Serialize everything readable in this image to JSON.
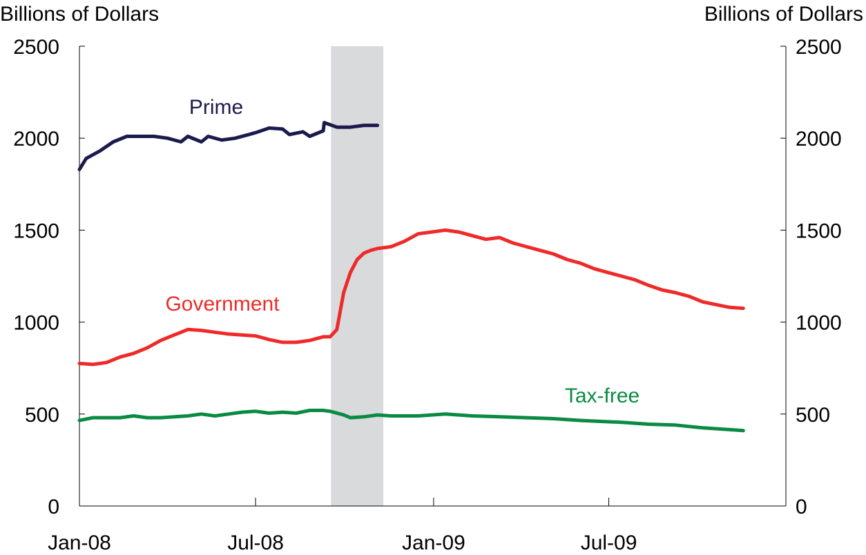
{
  "chart_data": {
    "type": "line",
    "ylabel_left": "Billions of Dollars",
    "ylabel_right": "Billions of Dollars",
    "ylim": [
      0,
      2500
    ],
    "yticks": [
      0,
      500,
      1000,
      1500,
      2000,
      2500
    ],
    "xlim": [
      "2008-01-01",
      "2009-12-31"
    ],
    "xticks": [
      {
        "date": "2008-01-01",
        "label": "Jan-08"
      },
      {
        "date": "2008-07-01",
        "label": "Jul-08"
      },
      {
        "date": "2009-01-01",
        "label": "Jan-09"
      },
      {
        "date": "2009-07-01",
        "label": "Jul-09"
      }
    ],
    "shaded_region": {
      "start": "2008-09-17",
      "end": "2008-11-10",
      "color": "#d9dadc"
    },
    "series": [
      {
        "name": "Prime",
        "color": "#1b1a4d",
        "points": [
          [
            "2008-01-01",
            1830
          ],
          [
            "2008-01-08",
            1890
          ],
          [
            "2008-01-22",
            1930
          ],
          [
            "2008-02-05",
            1980
          ],
          [
            "2008-02-19",
            2010
          ],
          [
            "2008-03-04",
            2010
          ],
          [
            "2008-03-18",
            2010
          ],
          [
            "2008-04-01",
            2000
          ],
          [
            "2008-04-15",
            1980
          ],
          [
            "2008-04-22",
            2010
          ],
          [
            "2008-05-06",
            1980
          ],
          [
            "2008-05-13",
            2010
          ],
          [
            "2008-05-27",
            1990
          ],
          [
            "2008-06-10",
            2000
          ],
          [
            "2008-06-24",
            2020
          ],
          [
            "2008-07-01",
            2030
          ],
          [
            "2008-07-15",
            2055
          ],
          [
            "2008-07-29",
            2050
          ],
          [
            "2008-08-05",
            2020
          ],
          [
            "2008-08-19",
            2035
          ],
          [
            "2008-08-26",
            2010
          ],
          [
            "2008-09-09",
            2040
          ],
          [
            "2008-09-23",
            2060
          ],
          [
            "2008-10-07",
            2060
          ],
          [
            "2008-10-21",
            2070
          ],
          [
            "2008-11-04",
            2070
          ],
          [
            "2008-09-10",
            2085
          ]
        ],
        "label_position": "above"
      },
      {
        "name": "Government",
        "color": "#ee2a2a",
        "points": [
          [
            "2008-01-01",
            775
          ],
          [
            "2008-01-15",
            770
          ],
          [
            "2008-01-29",
            780
          ],
          [
            "2008-02-12",
            810
          ],
          [
            "2008-02-26",
            830
          ],
          [
            "2008-03-11",
            860
          ],
          [
            "2008-03-25",
            900
          ],
          [
            "2008-04-08",
            930
          ],
          [
            "2008-04-22",
            960
          ],
          [
            "2008-05-06",
            955
          ],
          [
            "2008-05-20",
            945
          ],
          [
            "2008-06-03",
            935
          ],
          [
            "2008-06-17",
            930
          ],
          [
            "2008-07-01",
            925
          ],
          [
            "2008-07-15",
            905
          ],
          [
            "2008-07-29",
            890
          ],
          [
            "2008-08-12",
            890
          ],
          [
            "2008-08-26",
            900
          ],
          [
            "2008-09-09",
            920
          ],
          [
            "2008-09-16",
            920
          ],
          [
            "2008-09-23",
            960
          ],
          [
            "2008-09-30",
            1160
          ],
          [
            "2008-10-07",
            1270
          ],
          [
            "2008-10-14",
            1340
          ],
          [
            "2008-10-21",
            1375
          ],
          [
            "2008-10-28",
            1390
          ],
          [
            "2008-11-04",
            1400
          ],
          [
            "2008-11-18",
            1410
          ],
          [
            "2008-12-02",
            1440
          ],
          [
            "2008-12-16",
            1480
          ],
          [
            "2008-12-30",
            1490
          ],
          [
            "2009-01-13",
            1500
          ],
          [
            "2009-01-27",
            1490
          ],
          [
            "2009-02-10",
            1470
          ],
          [
            "2009-02-24",
            1450
          ],
          [
            "2009-03-10",
            1460
          ],
          [
            "2009-03-24",
            1430
          ],
          [
            "2009-04-07",
            1410
          ],
          [
            "2009-04-21",
            1390
          ],
          [
            "2009-05-05",
            1370
          ],
          [
            "2009-05-19",
            1340
          ],
          [
            "2009-06-02",
            1320
          ],
          [
            "2009-06-16",
            1290
          ],
          [
            "2009-06-30",
            1270
          ],
          [
            "2009-07-14",
            1250
          ],
          [
            "2009-07-28",
            1230
          ],
          [
            "2009-08-11",
            1200
          ],
          [
            "2009-08-25",
            1175
          ],
          [
            "2009-09-08",
            1160
          ],
          [
            "2009-09-22",
            1140
          ],
          [
            "2009-10-06",
            1110
          ],
          [
            "2009-10-20",
            1095
          ],
          [
            "2009-11-03",
            1080
          ],
          [
            "2009-11-17",
            1075
          ]
        ]
      },
      {
        "name": "Tax-free",
        "color": "#0a8a43",
        "points": [
          [
            "2008-01-01",
            465
          ],
          [
            "2008-01-15",
            480
          ],
          [
            "2008-02-12",
            480
          ],
          [
            "2008-02-26",
            490
          ],
          [
            "2008-03-11",
            480
          ],
          [
            "2008-03-25",
            480
          ],
          [
            "2008-04-22",
            490
          ],
          [
            "2008-05-06",
            500
          ],
          [
            "2008-05-20",
            490
          ],
          [
            "2008-06-03",
            500
          ],
          [
            "2008-06-17",
            510
          ],
          [
            "2008-07-01",
            515
          ],
          [
            "2008-07-15",
            505
          ],
          [
            "2008-07-29",
            510
          ],
          [
            "2008-08-12",
            505
          ],
          [
            "2008-08-26",
            520
          ],
          [
            "2008-09-09",
            520
          ],
          [
            "2008-09-16",
            515
          ],
          [
            "2008-09-30",
            495
          ],
          [
            "2008-10-07",
            480
          ],
          [
            "2008-10-21",
            485
          ],
          [
            "2008-11-04",
            495
          ],
          [
            "2008-11-18",
            490
          ],
          [
            "2008-12-02",
            490
          ],
          [
            "2008-12-16",
            490
          ],
          [
            "2009-01-13",
            500
          ],
          [
            "2009-01-27",
            495
          ],
          [
            "2009-02-10",
            490
          ],
          [
            "2009-03-10",
            485
          ],
          [
            "2009-04-07",
            480
          ],
          [
            "2009-05-05",
            475
          ],
          [
            "2009-06-02",
            465
          ],
          [
            "2009-07-14",
            455
          ],
          [
            "2009-08-11",
            445
          ],
          [
            "2009-09-08",
            440
          ],
          [
            "2009-10-06",
            425
          ],
          [
            "2009-11-03",
            415
          ],
          [
            "2009-11-17",
            410
          ]
        ]
      }
    ]
  }
}
